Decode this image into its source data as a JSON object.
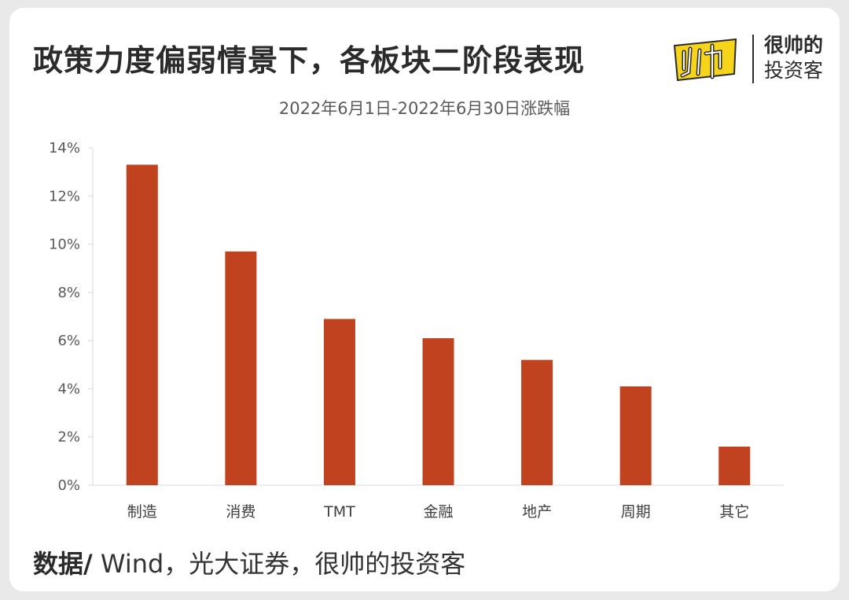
{
  "header": {
    "title": "政策力度偏弱情景下，各板块二阶段表现",
    "logo_line1": "很帅的",
    "logo_line2": "投资客",
    "logo_icon": "shuai-character-logo"
  },
  "chart_data": {
    "type": "bar",
    "title": "2022年6月1日-2022年6月30日涨跌幅",
    "xlabel": "",
    "ylabel": "",
    "categories": [
      "制造",
      "消费",
      "TMT",
      "金融",
      "地产",
      "周期",
      "其它"
    ],
    "values": [
      13.3,
      9.7,
      6.9,
      6.1,
      5.2,
      4.1,
      1.6
    ],
    "ylim": [
      0,
      14
    ],
    "yticks": [
      "0%",
      "2%",
      "4%",
      "6%",
      "8%",
      "10%",
      "12%",
      "14%"
    ],
    "bar_color": "#c0421f",
    "grid": false,
    "legend": "none"
  },
  "footer": {
    "source_label": "数据/",
    "source_text": " Wind，光大证券，很帅的投资客"
  }
}
